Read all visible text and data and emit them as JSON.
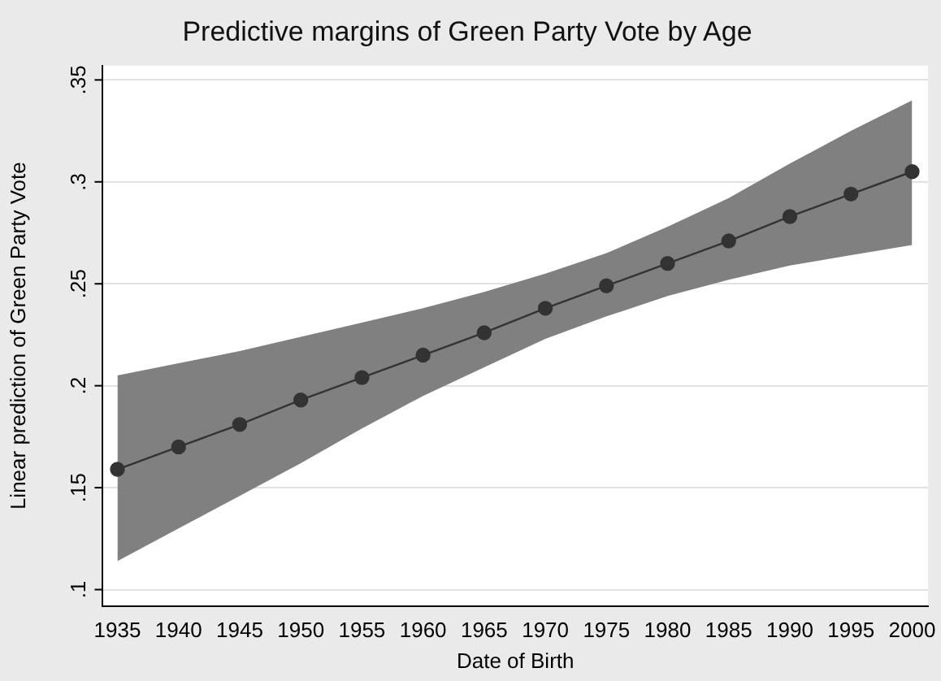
{
  "chart_data": {
    "type": "line",
    "title": "Predictive margins of Green Party Vote by Age",
    "xlabel": "Date of Birth",
    "ylabel": "Linear prediction of Green Party Vote",
    "x": [
      1935,
      1940,
      1945,
      1950,
      1955,
      1960,
      1965,
      1970,
      1975,
      1980,
      1985,
      1990,
      1995,
      2000
    ],
    "series": [
      {
        "color": "#333333",
        "values": [
          0.159,
          0.17,
          0.181,
          0.193,
          0.204,
          0.215,
          0.226,
          0.238,
          0.249,
          0.26,
          0.271,
          0.283,
          0.294,
          0.305
        ],
        "lower": [
          0.114,
          0.13,
          0.146,
          0.162,
          0.179,
          0.195,
          0.209,
          0.223,
          0.234,
          0.244,
          0.252,
          0.259,
          0.264,
          0.269
        ],
        "upper": [
          0.205,
          0.211,
          0.217,
          0.224,
          0.231,
          0.238,
          0.246,
          0.255,
          0.265,
          0.278,
          0.292,
          0.309,
          0.325,
          0.34
        ]
      }
    ],
    "xlim": [
      1933.8,
      2001.3
    ],
    "xticks": [
      1935,
      1940,
      1945,
      1950,
      1955,
      1960,
      1965,
      1970,
      1975,
      1980,
      1985,
      1990,
      1995,
      2000
    ],
    "ylim": [
      0.092,
      0.357
    ],
    "yticks": [
      {
        "value": 0.1,
        "label": ".1"
      },
      {
        "value": 0.15,
        "label": ".15"
      },
      {
        "value": 0.2,
        "label": ".2"
      },
      {
        "value": 0.25,
        "label": ".25"
      },
      {
        "value": 0.3,
        "label": ".3"
      },
      {
        "value": 0.35,
        "label": ".35"
      }
    ],
    "grid": "y",
    "marker": "circle",
    "line_style": "solid",
    "legend": false
  }
}
